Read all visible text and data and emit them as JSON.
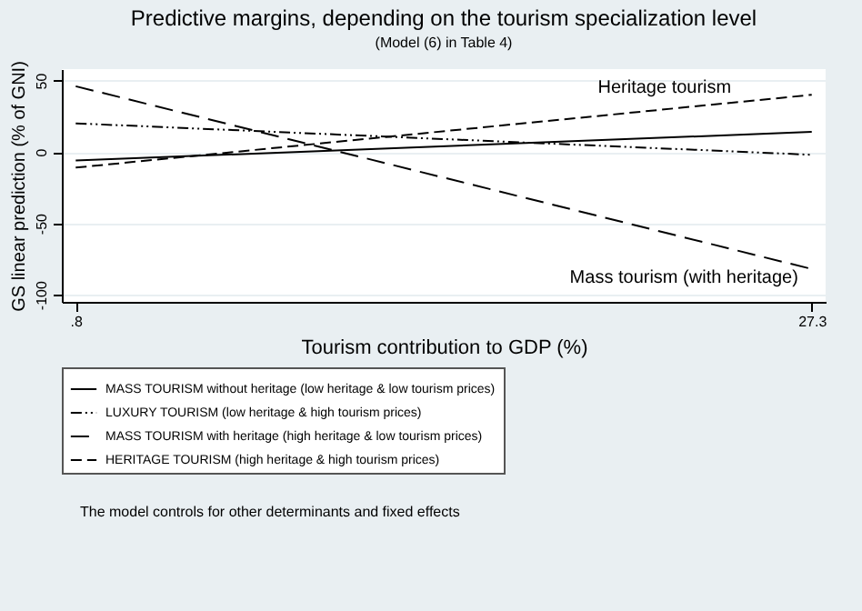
{
  "chart_data": {
    "type": "line",
    "title": "Predictive margins, depending on the tourism specialization level",
    "subtitle": "(Model (6) in Table 4)",
    "xlabel": "Tourism contribution to GDP (%)",
    "ylabel": "GS linear prediction (% of GNI)",
    "x": [
      0.8,
      27.3
    ],
    "series": [
      {
        "name": "MASS TOURISM without heritage (low heritage & low tourism prices)",
        "color": "#000000",
        "line_style": "solid",
        "values": [
          -6,
          14
        ]
      },
      {
        "name": "LUXURY TOURISM (low heritage & high tourism prices)",
        "color": "#000000",
        "line_style": "dotted",
        "values": [
          20,
          -2
        ]
      },
      {
        "name": "MASS TOURISM with heritage (high heritage & low tourism prices)",
        "color": "#000000",
        "line_style": "dashed",
        "values": [
          46,
          -82
        ]
      },
      {
        "name": "HERITAGE TOURISM (high heritage & high tourism prices)",
        "color": "#000000",
        "line_style": "dashed",
        "values": [
          -11,
          40
        ]
      }
    ],
    "xlim": [
      0.3,
      27.8
    ],
    "ylim": [
      -105,
      58
    ],
    "xticks": [
      {
        "value": 0.8,
        "label": ".8"
      },
      27.3
    ],
    "yticks": [
      -100,
      -50,
      0,
      50
    ],
    "grid": "y",
    "legend": "bottom",
    "annotations": [
      {
        "text": "Heritage tourism",
        "x": 22,
        "y": 30
      },
      {
        "text": "Mass tourism (with heritage)",
        "x": 22.7,
        "y": -60
      },
      "The model controls for other determinants and fixed effects"
    ]
  }
}
